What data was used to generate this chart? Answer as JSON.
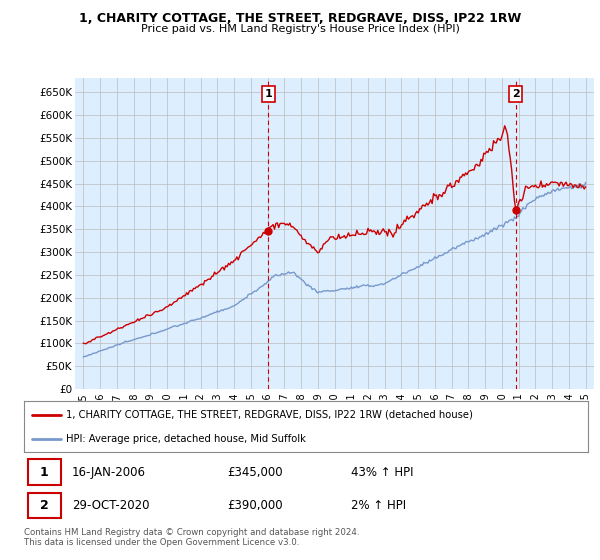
{
  "title": "1, CHARITY COTTAGE, THE STREET, REDGRAVE, DISS, IP22 1RW",
  "subtitle": "Price paid vs. HM Land Registry's House Price Index (HPI)",
  "legend_line1": "1, CHARITY COTTAGE, THE STREET, REDGRAVE, DISS, IP22 1RW (detached house)",
  "legend_line2": "HPI: Average price, detached house, Mid Suffolk",
  "transaction1_date": "16-JAN-2006",
  "transaction1_price": "£345,000",
  "transaction1_hpi": "43% ↑ HPI",
  "transaction2_date": "29-OCT-2020",
  "transaction2_price": "£390,000",
  "transaction2_hpi": "2% ↑ HPI",
  "footer": "Contains HM Land Registry data © Crown copyright and database right 2024.\nThis data is licensed under the Open Government Licence v3.0.",
  "red_line_color": "#cc0000",
  "blue_line_color": "#7799cc",
  "vline_color": "#cc0000",
  "marker_box_color": "#cc0000",
  "grid_color": "#bbbbbb",
  "bg_color": "#ffffff",
  "plot_bg_color": "#ddeeff",
  "ylim": [
    0,
    680000
  ],
  "yticks": [
    0,
    50000,
    100000,
    150000,
    200000,
    250000,
    300000,
    350000,
    400000,
    450000,
    500000,
    550000,
    600000,
    650000
  ],
  "xlim_start": 1994.5,
  "xlim_end": 2025.5,
  "xticks": [
    1995,
    1996,
    1997,
    1998,
    1999,
    2000,
    2001,
    2002,
    2003,
    2004,
    2005,
    2006,
    2007,
    2008,
    2009,
    2010,
    2011,
    2012,
    2013,
    2014,
    2015,
    2016,
    2017,
    2018,
    2019,
    2020,
    2021,
    2022,
    2023,
    2024,
    2025
  ],
  "transaction1_x": 2006.04,
  "transaction2_x": 2020.83,
  "transaction1_price_val": 345000,
  "transaction2_price_val": 390000
}
